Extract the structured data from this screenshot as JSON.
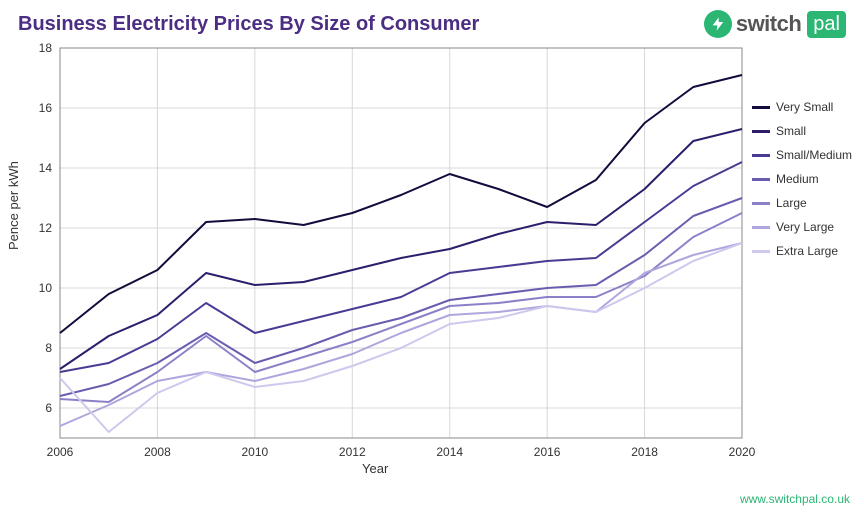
{
  "title": "Business Electricity Prices By Size of Consumer",
  "logo": {
    "brand": "switch",
    "suffix": "pal",
    "bolt_bg": "#2bb673"
  },
  "footer_url": "www.switchpal.co.uk",
  "chart": {
    "type": "line",
    "xlabel": "Year",
    "ylabel": "Pence per kWh",
    "xlim": [
      2006,
      2020
    ],
    "ylim": [
      5,
      18
    ],
    "xtick_step": 2,
    "ytick_step": 2,
    "grid_color": "#d8d8d8",
    "axis_color": "#888888",
    "background_color": "#ffffff",
    "tick_fontsize": 12,
    "label_fontsize": 13,
    "line_width": 2,
    "years": [
      2006,
      2007,
      2008,
      2009,
      2010,
      2011,
      2012,
      2013,
      2014,
      2015,
      2016,
      2017,
      2018,
      2019,
      2020
    ],
    "series": [
      {
        "name": "Very Small",
        "color": "#140a3b",
        "values": [
          8.5,
          9.8,
          10.6,
          12.2,
          12.3,
          12.1,
          12.5,
          13.1,
          13.8,
          13.3,
          12.7,
          13.6,
          15.5,
          16.7,
          17.1
        ]
      },
      {
        "name": "Small",
        "color": "#2d1d6b",
        "values": [
          7.3,
          8.4,
          9.1,
          10.5,
          10.1,
          10.2,
          10.6,
          11.0,
          11.3,
          11.8,
          12.2,
          12.1,
          13.3,
          14.9,
          15.3
        ]
      },
      {
        "name": "Small/Medium",
        "color": "#4b3a94",
        "values": [
          7.2,
          7.5,
          8.3,
          9.5,
          8.5,
          8.9,
          9.3,
          9.7,
          10.5,
          10.7,
          10.9,
          11.0,
          12.2,
          13.4,
          14.2
        ]
      },
      {
        "name": "Medium",
        "color": "#6c5cb0",
        "values": [
          6.4,
          6.8,
          7.5,
          8.5,
          7.5,
          8.0,
          8.6,
          9.0,
          9.6,
          9.8,
          10.0,
          10.1,
          11.1,
          12.4,
          13.0
        ]
      },
      {
        "name": "Large",
        "color": "#8d80c8",
        "values": [
          6.3,
          6.2,
          7.2,
          8.4,
          7.2,
          7.7,
          8.2,
          8.8,
          9.4,
          9.5,
          9.7,
          9.7,
          10.4,
          11.7,
          12.5
        ]
      },
      {
        "name": "Very Large",
        "color": "#b0a6dd",
        "values": [
          5.4,
          6.1,
          6.9,
          7.2,
          6.9,
          7.3,
          7.8,
          8.5,
          9.1,
          9.2,
          9.4,
          9.2,
          10.5,
          11.1,
          11.5
        ]
      },
      {
        "name": "Extra Large",
        "color": "#cfc8ed",
        "values": [
          7.0,
          5.2,
          6.5,
          7.2,
          6.7,
          6.9,
          7.4,
          8.0,
          8.8,
          9.0,
          9.4,
          9.2,
          10.0,
          10.9,
          11.5
        ]
      }
    ]
  }
}
